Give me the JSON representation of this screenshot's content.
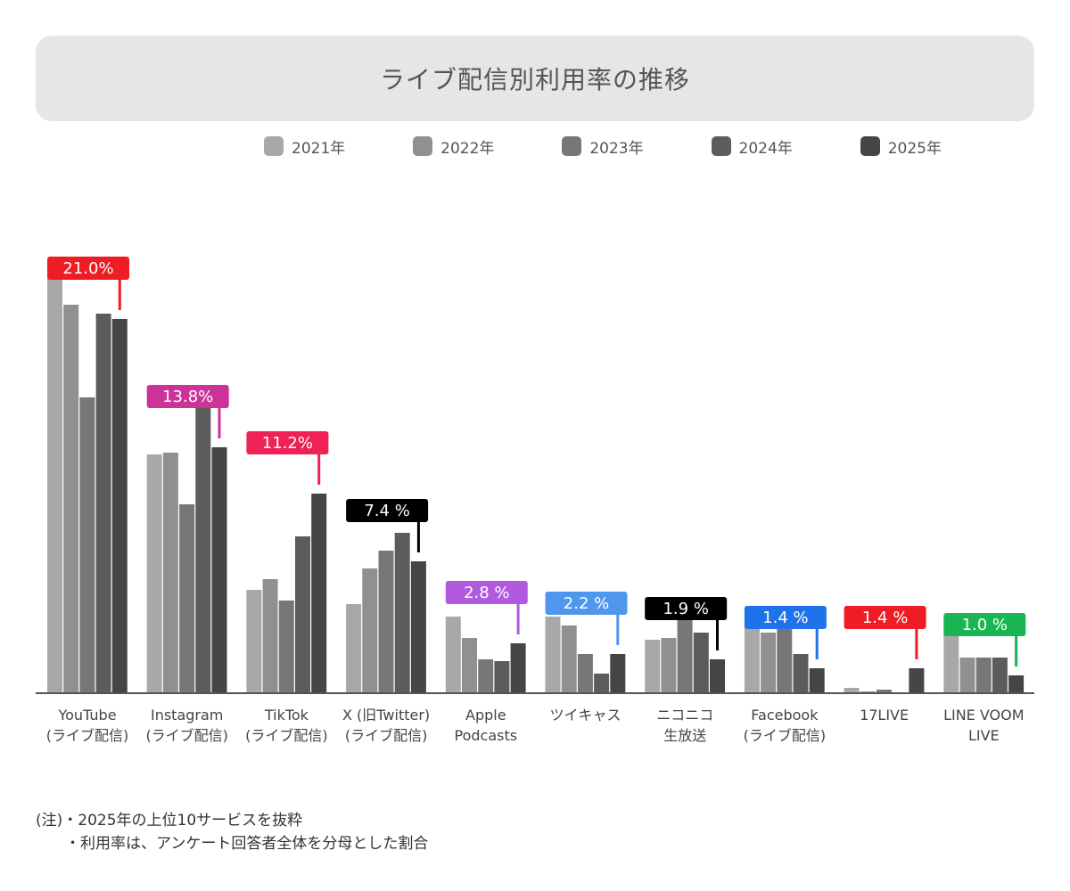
{
  "chart_data": {
    "type": "bar",
    "title": "ライブ配信別利用率の推移",
    "categories": [
      [
        "YouTube",
        "(ライブ配信)"
      ],
      [
        "Instagram",
        "(ライブ配信)"
      ],
      [
        "TikTok",
        "(ライブ配信)"
      ],
      [
        "X (旧Twitter)",
        "(ライブ配信)"
      ],
      [
        "Apple",
        "Podcasts"
      ],
      [
        "ツイキャス"
      ],
      [
        "ニコニコ",
        "生放送"
      ],
      [
        "Facebook",
        "(ライブ配信)"
      ],
      [
        "17LIVE"
      ],
      [
        "LINE VOOM",
        "LIVE"
      ]
    ],
    "series": [
      {
        "name": "2021年",
        "color": "#a8a8a8",
        "values": [
          23.4,
          13.4,
          5.8,
          5.0,
          4.3,
          4.3,
          3.0,
          3.9,
          0.3,
          3.3
        ]
      },
      {
        "name": "2022年",
        "color": "#909090",
        "values": [
          21.8,
          13.5,
          6.4,
          7.0,
          3.1,
          3.8,
          3.1,
          3.4,
          0.1,
          2.0
        ]
      },
      {
        "name": "2023年",
        "color": "#777777",
        "values": [
          16.6,
          10.6,
          5.2,
          8.0,
          1.9,
          2.2,
          5.3,
          3.8,
          0.2,
          2.0
        ]
      },
      {
        "name": "2024年",
        "color": "#5c5c5c",
        "values": [
          21.3,
          16.4,
          8.8,
          9.0,
          1.8,
          1.1,
          3.4,
          2.2,
          0.0,
          2.0
        ]
      },
      {
        "name": "2025年",
        "color": "#454545",
        "values": [
          21.0,
          13.8,
          11.2,
          7.4,
          2.8,
          2.2,
          1.9,
          1.4,
          1.4,
          1.0
        ]
      }
    ],
    "callouts": [
      {
        "text": "21.0%",
        "color": "#ee1c25"
      },
      {
        "text": "13.8%",
        "color": "#cc3399"
      },
      {
        "text": "11.2%",
        "color": "#ee2255"
      },
      {
        "text": "7.4 %",
        "color": "#000000"
      },
      {
        "text": "2.8 %",
        "color": "#b15ae0"
      },
      {
        "text": "2.2 %",
        "color": "#4f97ee"
      },
      {
        "text": "1.9 %",
        "color": "#000000"
      },
      {
        "text": "1.4 %",
        "color": "#1f73ea"
      },
      {
        "text": "1.4 %",
        "color": "#ee1c25"
      },
      {
        "text": "1.0 %",
        "color": "#19b552"
      }
    ],
    "ylim": [
      0,
      23.4
    ],
    "grid": false,
    "legend_position": "top"
  },
  "notes": {
    "line1": "(注)・2025年の上位10サービスを抜粋",
    "line2": "・利用率は、アンケート回答者全体を分母とした割合"
  }
}
